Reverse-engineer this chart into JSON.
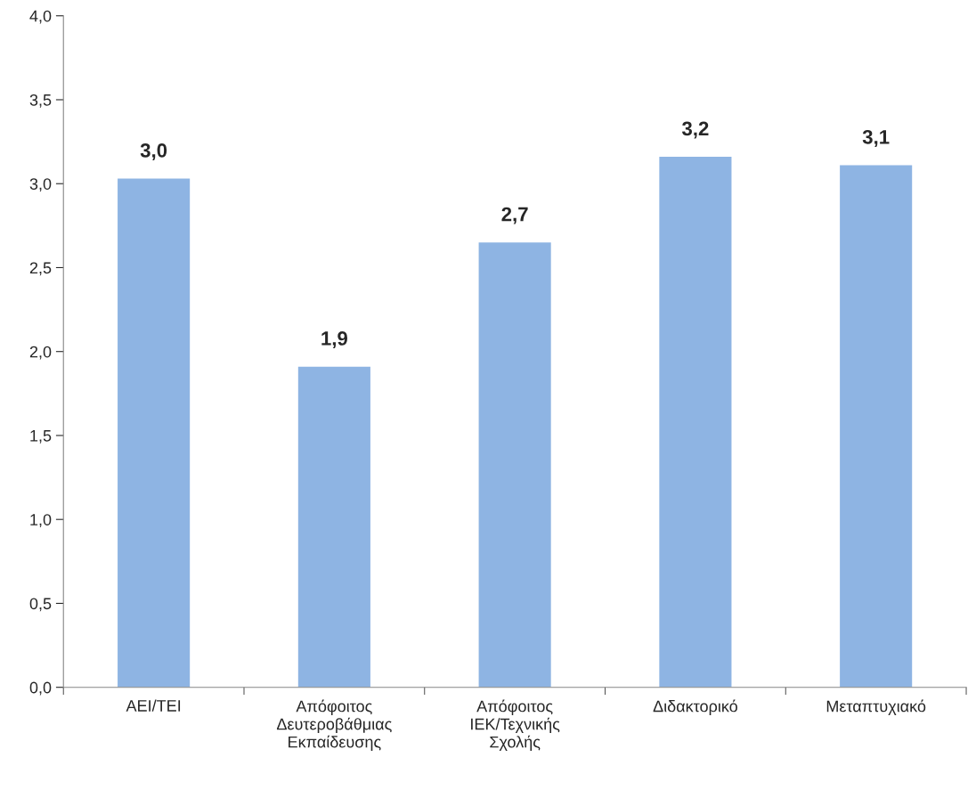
{
  "chart_data": {
    "type": "bar",
    "categories": [
      "ΑΕΙ/ΤΕΙ",
      "Απόφοιτος Δευτεροβάθμιας Εκπαίδευσης",
      "Απόφοιτος ΙΕΚ/Τεχνικής Σχολής",
      "Διδακτορικό",
      "Μεταπτυχιακό"
    ],
    "values": [
      3.03,
      1.91,
      2.65,
      3.16,
      3.11
    ],
    "value_labels": [
      "3,0",
      "1,9",
      "2,7",
      "3,2",
      "3,1"
    ],
    "color": "#8eb4e3",
    "ylim": [
      0,
      4
    ],
    "yticks": [
      {
        "value": 0,
        "label": "0,0"
      },
      {
        "value": 0.5,
        "label": "0,5"
      },
      {
        "value": 1,
        "label": "1,0"
      },
      {
        "value": 1.5,
        "label": "1,5"
      },
      {
        "value": 2,
        "label": "2,0"
      },
      {
        "value": 2.5,
        "label": "2,5"
      },
      {
        "value": 3,
        "label": "3,0"
      },
      {
        "value": 3.5,
        "label": "3,5"
      },
      {
        "value": 4,
        "label": "4,0"
      }
    ],
    "grid": false,
    "legend": false
  }
}
